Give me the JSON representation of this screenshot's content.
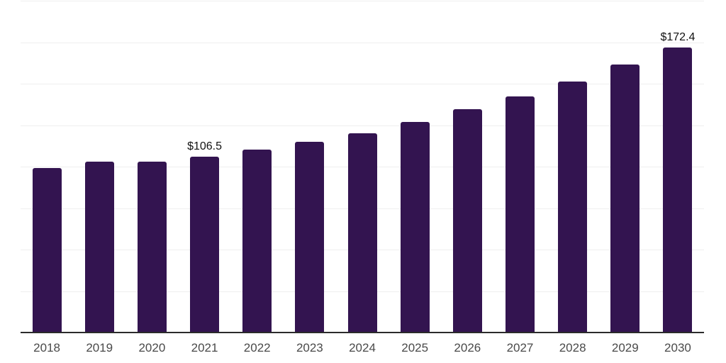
{
  "chart_data": {
    "type": "bar",
    "title": "",
    "xlabel": "",
    "ylabel": "",
    "categories": [
      "2018",
      "2019",
      "2020",
      "2021",
      "2022",
      "2023",
      "2024",
      "2025",
      "2026",
      "2027",
      "2028",
      "2029",
      "2030"
    ],
    "values": [
      99.6,
      103.4,
      103.4,
      106.5,
      110.7,
      115.4,
      120.7,
      127.3,
      135.2,
      142.8,
      151.7,
      162.0,
      172.4
    ],
    "data_labels": [
      {
        "index": 3,
        "text": "$106.5"
      },
      {
        "index": 12,
        "text": "$172.4"
      }
    ],
    "ylim": [
      0,
      200
    ],
    "gridline_values": [
      25,
      50,
      75,
      100,
      125,
      150,
      175,
      200
    ],
    "grid": "horizontal",
    "legend": "none",
    "y_axis_labels_visible": false
  },
  "styles": {
    "bar_color": "#331450",
    "grid_color": "#efefef",
    "axis_color": "#2b2b2b",
    "tick_label_color": "#4a4a4a",
    "data_label_color": "#111111",
    "background": "#ffffff"
  }
}
